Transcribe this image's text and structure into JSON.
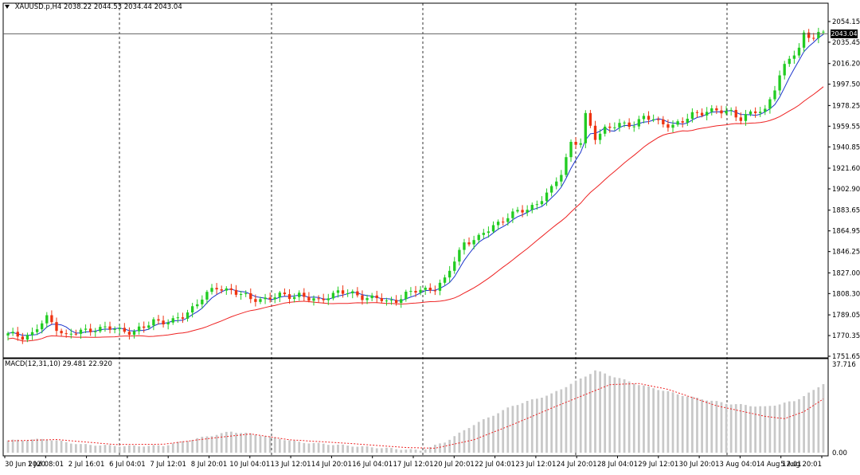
{
  "header": {
    "symbol": "XAUUSD.p,H4",
    "ohlc": "2038.22 2044.53 2034.44 2043.04"
  },
  "macd": {
    "label": "MACD(12,31,10) 29.481 22.920",
    "axis_top": "37.716",
    "axis_bottom": "0.00"
  },
  "current_price": "2043.04",
  "colors": {
    "bull": "#22cc22",
    "bear": "#ee3311",
    "fast_ma": "#1a33cc",
    "slow_ma": "#ee2222",
    "macd_hist": "#c8c8c8",
    "macd_signal": "#ee2222",
    "grid": "#000000"
  },
  "chart_data": {
    "type": "candlestick",
    "instrument": "XAUUSD.p",
    "timeframe": "H4",
    "y_axis_labels": [
      "2054.15",
      "2035.45",
      "2016.20",
      "1997.50",
      "1978.25",
      "1959.55",
      "1940.85",
      "1921.60",
      "1902.90",
      "1883.65",
      "1864.95",
      "1846.25",
      "1827.00",
      "1808.30",
      "1789.05",
      "1770.35",
      "1751.65"
    ],
    "ylim": [
      1751.65,
      2054.15
    ],
    "x_axis_labels": [
      "30 Jun 2020",
      "1 Jul 08:01",
      "2 Jul 16:01",
      "6 Jul 04:01",
      "7 Jul 12:01",
      "8 Jul 20:01",
      "10 Jul 04:01",
      "13 Jul 12:01",
      "14 Jul 20:01",
      "16 Jul 04:01",
      "17 Jul 12:01",
      "20 Jul 20:01",
      "22 Jul 04:01",
      "23 Jul 12:01",
      "24 Jul 20:01",
      "28 Jul 04:01",
      "29 Jul 12:01",
      "30 Jul 20:01",
      "3 Aug 04:01",
      "4 Aug 12:01",
      "5 Aug 20:01"
    ],
    "price_anchors": [
      [
        0,
        1771
      ],
      [
        3,
        1770
      ],
      [
        5,
        1772
      ],
      [
        8,
        1786
      ],
      [
        10,
        1778
      ],
      [
        12,
        1770
      ],
      [
        15,
        1774
      ],
      [
        18,
        1777
      ],
      [
        22,
        1776
      ],
      [
        26,
        1774
      ],
      [
        28,
        1777
      ],
      [
        30,
        1784
      ],
      [
        34,
        1783
      ],
      [
        36,
        1787
      ],
      [
        38,
        1796
      ],
      [
        40,
        1805
      ],
      [
        43,
        1813
      ],
      [
        46,
        1812
      ],
      [
        48,
        1807
      ],
      [
        50,
        1803
      ],
      [
        53,
        1804
      ],
      [
        56,
        1806
      ],
      [
        58,
        1806
      ],
      [
        60,
        1808
      ],
      [
        62,
        1803
      ],
      [
        64,
        1801
      ],
      [
        66,
        1807
      ],
      [
        68,
        1810
      ],
      [
        70,
        1808
      ],
      [
        72,
        1807
      ],
      [
        74,
        1805
      ],
      [
        76,
        1804
      ],
      [
        78,
        1800
      ],
      [
        80,
        1803
      ],
      [
        82,
        1808
      ],
      [
        84,
        1810
      ],
      [
        86,
        1812
      ],
      [
        88,
        1814
      ],
      [
        90,
        1820
      ],
      [
        92,
        1838
      ],
      [
        94,
        1855
      ],
      [
        97,
        1858
      ],
      [
        100,
        1870
      ],
      [
        103,
        1878
      ],
      [
        106,
        1883
      ],
      [
        109,
        1890
      ],
      [
        112,
        1902
      ],
      [
        114,
        1918
      ],
      [
        116,
        1945
      ],
      [
        118,
        1944
      ],
      [
        119,
        1968
      ],
      [
        121,
        1950
      ],
      [
        123,
        1958
      ],
      [
        126,
        1960
      ],
      [
        129,
        1962
      ],
      [
        131,
        1968
      ],
      [
        134,
        1963
      ],
      [
        137,
        1961
      ],
      [
        139,
        1963
      ],
      [
        141,
        1970
      ],
      [
        144,
        1974
      ],
      [
        147,
        1972
      ],
      [
        149,
        1973
      ],
      [
        151,
        1967
      ],
      [
        154,
        1972
      ],
      [
        156,
        1974
      ],
      [
        157,
        1985
      ],
      [
        159,
        2005
      ],
      [
        161,
        2020
      ],
      [
        163,
        2030
      ],
      [
        164,
        2044
      ],
      [
        166,
        2040
      ],
      [
        168,
        2043
      ]
    ],
    "macd_anchors": [
      [
        0,
        5.2
      ],
      [
        8,
        5.8
      ],
      [
        15,
        3.5
      ],
      [
        24,
        2.8
      ],
      [
        32,
        3.0
      ],
      [
        40,
        6.5
      ],
      [
        46,
        9.0
      ],
      [
        52,
        7.5
      ],
      [
        60,
        4.5
      ],
      [
        70,
        3.0
      ],
      [
        80,
        1.6
      ],
      [
        85,
        1.0
      ],
      [
        90,
        4.5
      ],
      [
        96,
        12.0
      ],
      [
        104,
        20.0
      ],
      [
        112,
        25.0
      ],
      [
        118,
        31.5
      ],
      [
        121,
        35.0
      ],
      [
        124,
        33.0
      ],
      [
        130,
        29.0
      ],
      [
        140,
        24.0
      ],
      [
        148,
        21.0
      ],
      [
        156,
        19.5
      ],
      [
        162,
        22.0
      ],
      [
        166,
        26.5
      ],
      [
        168,
        29.5
      ]
    ],
    "signal_anchors": [
      [
        0,
        5.0
      ],
      [
        10,
        5.6
      ],
      [
        22,
        3.5
      ],
      [
        32,
        3.6
      ],
      [
        42,
        6.2
      ],
      [
        50,
        8.0
      ],
      [
        58,
        5.5
      ],
      [
        70,
        4.0
      ],
      [
        82,
        2.2
      ],
      [
        88,
        1.9
      ],
      [
        96,
        5.5
      ],
      [
        104,
        12.0
      ],
      [
        112,
        19.0
      ],
      [
        118,
        24.0
      ],
      [
        124,
        29.0
      ],
      [
        130,
        29.5
      ],
      [
        136,
        27.0
      ],
      [
        146,
        20.0
      ],
      [
        156,
        15.5
      ],
      [
        160,
        14.5
      ],
      [
        164,
        17.5
      ],
      [
        168,
        22.9
      ]
    ],
    "macd_ylim": [
      0,
      37.716
    ]
  }
}
